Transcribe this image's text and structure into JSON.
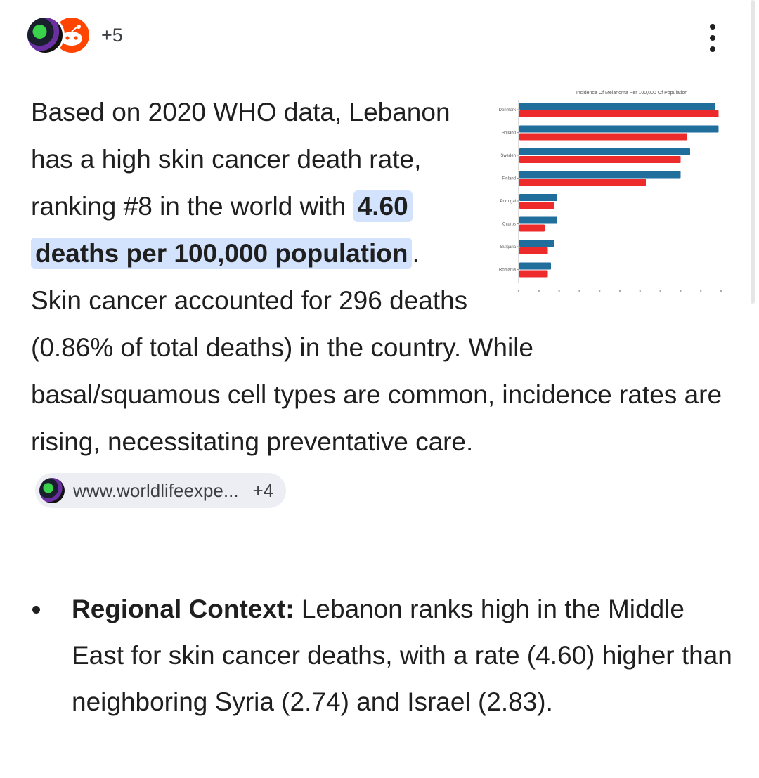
{
  "header": {
    "source_count": "+5",
    "icons": [
      "globe-site-icon",
      "reddit-icon",
      "more-vert-icon"
    ]
  },
  "answer": {
    "intro": "Based on 2020 WHO data, Lebanon has a high skin cancer death rate, ranking #8 in the world with ",
    "highlight": "4.60 deaths per 100,000 population",
    "rest": ". Skin cancer accounted for 296 deaths (0.86% of total deaths) in the country. While basal/squamous cell types are common, incidence rates are rising, necessitating preventative care.",
    "source_chip": {
      "label": "www.worldlifeexpe...",
      "more": "+4"
    }
  },
  "bullets": [
    {
      "title": "Regional Context:",
      "text": " Lebanon ranks high in the Middle East for skin cancer deaths, with a rate (4.60) higher than neighboring Syria (2.74) and Israel (2.83)."
    }
  ],
  "chart_data": {
    "type": "bar",
    "orientation": "horizontal",
    "title": "Incidence Of Melanoma Per 100,000 Of Population",
    "categories": [
      "Denmark",
      "Holland",
      "Sweden",
      "Finland",
      "Portugal",
      "Cyprus",
      "Bulgaria",
      "Romania"
    ],
    "series": [
      {
        "color": "#1f6e9c",
        "values": [
          31,
          31.5,
          27,
          25.5,
          6,
          6,
          5.5,
          5
        ]
      },
      {
        "color": "#ee2b2b",
        "values": [
          31.5,
          26.5,
          25.5,
          20,
          5.5,
          4,
          4.5,
          4.5
        ]
      }
    ],
    "xlim": [
      0,
      32
    ],
    "colors": {
      "blue": "#1f6e9c",
      "red": "#ee2b2b"
    }
  },
  "colors": {
    "highlight_bg": "#d3e3fd",
    "chip_bg": "#eceef3",
    "text": "#1f1f1f"
  }
}
